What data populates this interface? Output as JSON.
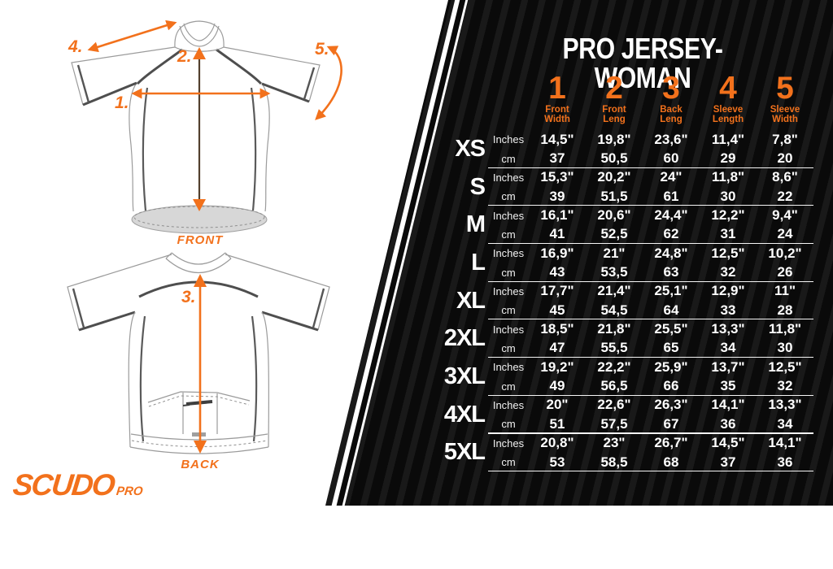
{
  "brand": {
    "name": "SCUDO",
    "suffix": "PRO"
  },
  "diagram": {
    "front_label": "FRONT",
    "back_label": "BACK",
    "markers": {
      "m1": "1.",
      "m2": "2.",
      "m3": "3.",
      "m4": "4.",
      "m5": "5."
    }
  },
  "panel": {
    "title": "PRO JERSEY-WOMAN",
    "accent_color": "#f2711c",
    "background_color": "#0a0a0a",
    "columns": [
      {
        "num": "1",
        "label_line1": "Front",
        "label_line2": "Width"
      },
      {
        "num": "2",
        "label_line1": "Front",
        "label_line2": "Leng"
      },
      {
        "num": "3",
        "label_line1": "Back",
        "label_line2": "Leng"
      },
      {
        "num": "4",
        "label_line1": "Sleeve",
        "label_line2": "Length"
      },
      {
        "num": "5",
        "label_line1": "Sleeve",
        "label_line2": "Width"
      }
    ],
    "units": {
      "row1": "Inches",
      "row2": "cm"
    },
    "sizes": [
      {
        "label": "XS",
        "inches": [
          "14,5\"",
          "19,8\"",
          "23,6\"",
          "11,4\"",
          "7,8\""
        ],
        "cm": [
          "37",
          "50,5",
          "60",
          "29",
          "20"
        ]
      },
      {
        "label": "S",
        "inches": [
          "15,3\"",
          "20,2\"",
          "24\"",
          "11,8\"",
          "8,6\""
        ],
        "cm": [
          "39",
          "51,5",
          "61",
          "30",
          "22"
        ]
      },
      {
        "label": "M",
        "inches": [
          "16,1\"",
          "20,6\"",
          "24,4\"",
          "12,2\"",
          "9,4\""
        ],
        "cm": [
          "41",
          "52,5",
          "62",
          "31",
          "24"
        ]
      },
      {
        "label": "L",
        "inches": [
          "16,9\"",
          "21\"",
          "24,8\"",
          "12,5\"",
          "10,2\""
        ],
        "cm": [
          "43",
          "53,5",
          "63",
          "32",
          "26"
        ]
      },
      {
        "label": "XL",
        "inches": [
          "17,7\"",
          "21,4\"",
          "25,1\"",
          "12,9\"",
          "11\""
        ],
        "cm": [
          "45",
          "54,5",
          "64",
          "33",
          "28"
        ]
      },
      {
        "label": "2XL",
        "inches": [
          "18,5\"",
          "21,8\"",
          "25,5\"",
          "13,3\"",
          "11,8\""
        ],
        "cm": [
          "47",
          "55,5",
          "65",
          "34",
          "30"
        ]
      },
      {
        "label": "3XL",
        "inches": [
          "19,2\"",
          "22,2\"",
          "25,9\"",
          "13,7\"",
          "12,5\""
        ],
        "cm": [
          "49",
          "56,5",
          "66",
          "35",
          "32"
        ]
      },
      {
        "label": "4XL",
        "inches": [
          "20\"",
          "22,6\"",
          "26,3\"",
          "14,1\"",
          "13,3\""
        ],
        "cm": [
          "51",
          "57,5",
          "67",
          "36",
          "34"
        ]
      },
      {
        "label": "5XL",
        "inches": [
          "20,8\"",
          "23\"",
          "26,7\"",
          "14,5\"",
          "14,1\""
        ],
        "cm": [
          "53",
          "58,5",
          "68",
          "37",
          "36"
        ]
      }
    ]
  }
}
